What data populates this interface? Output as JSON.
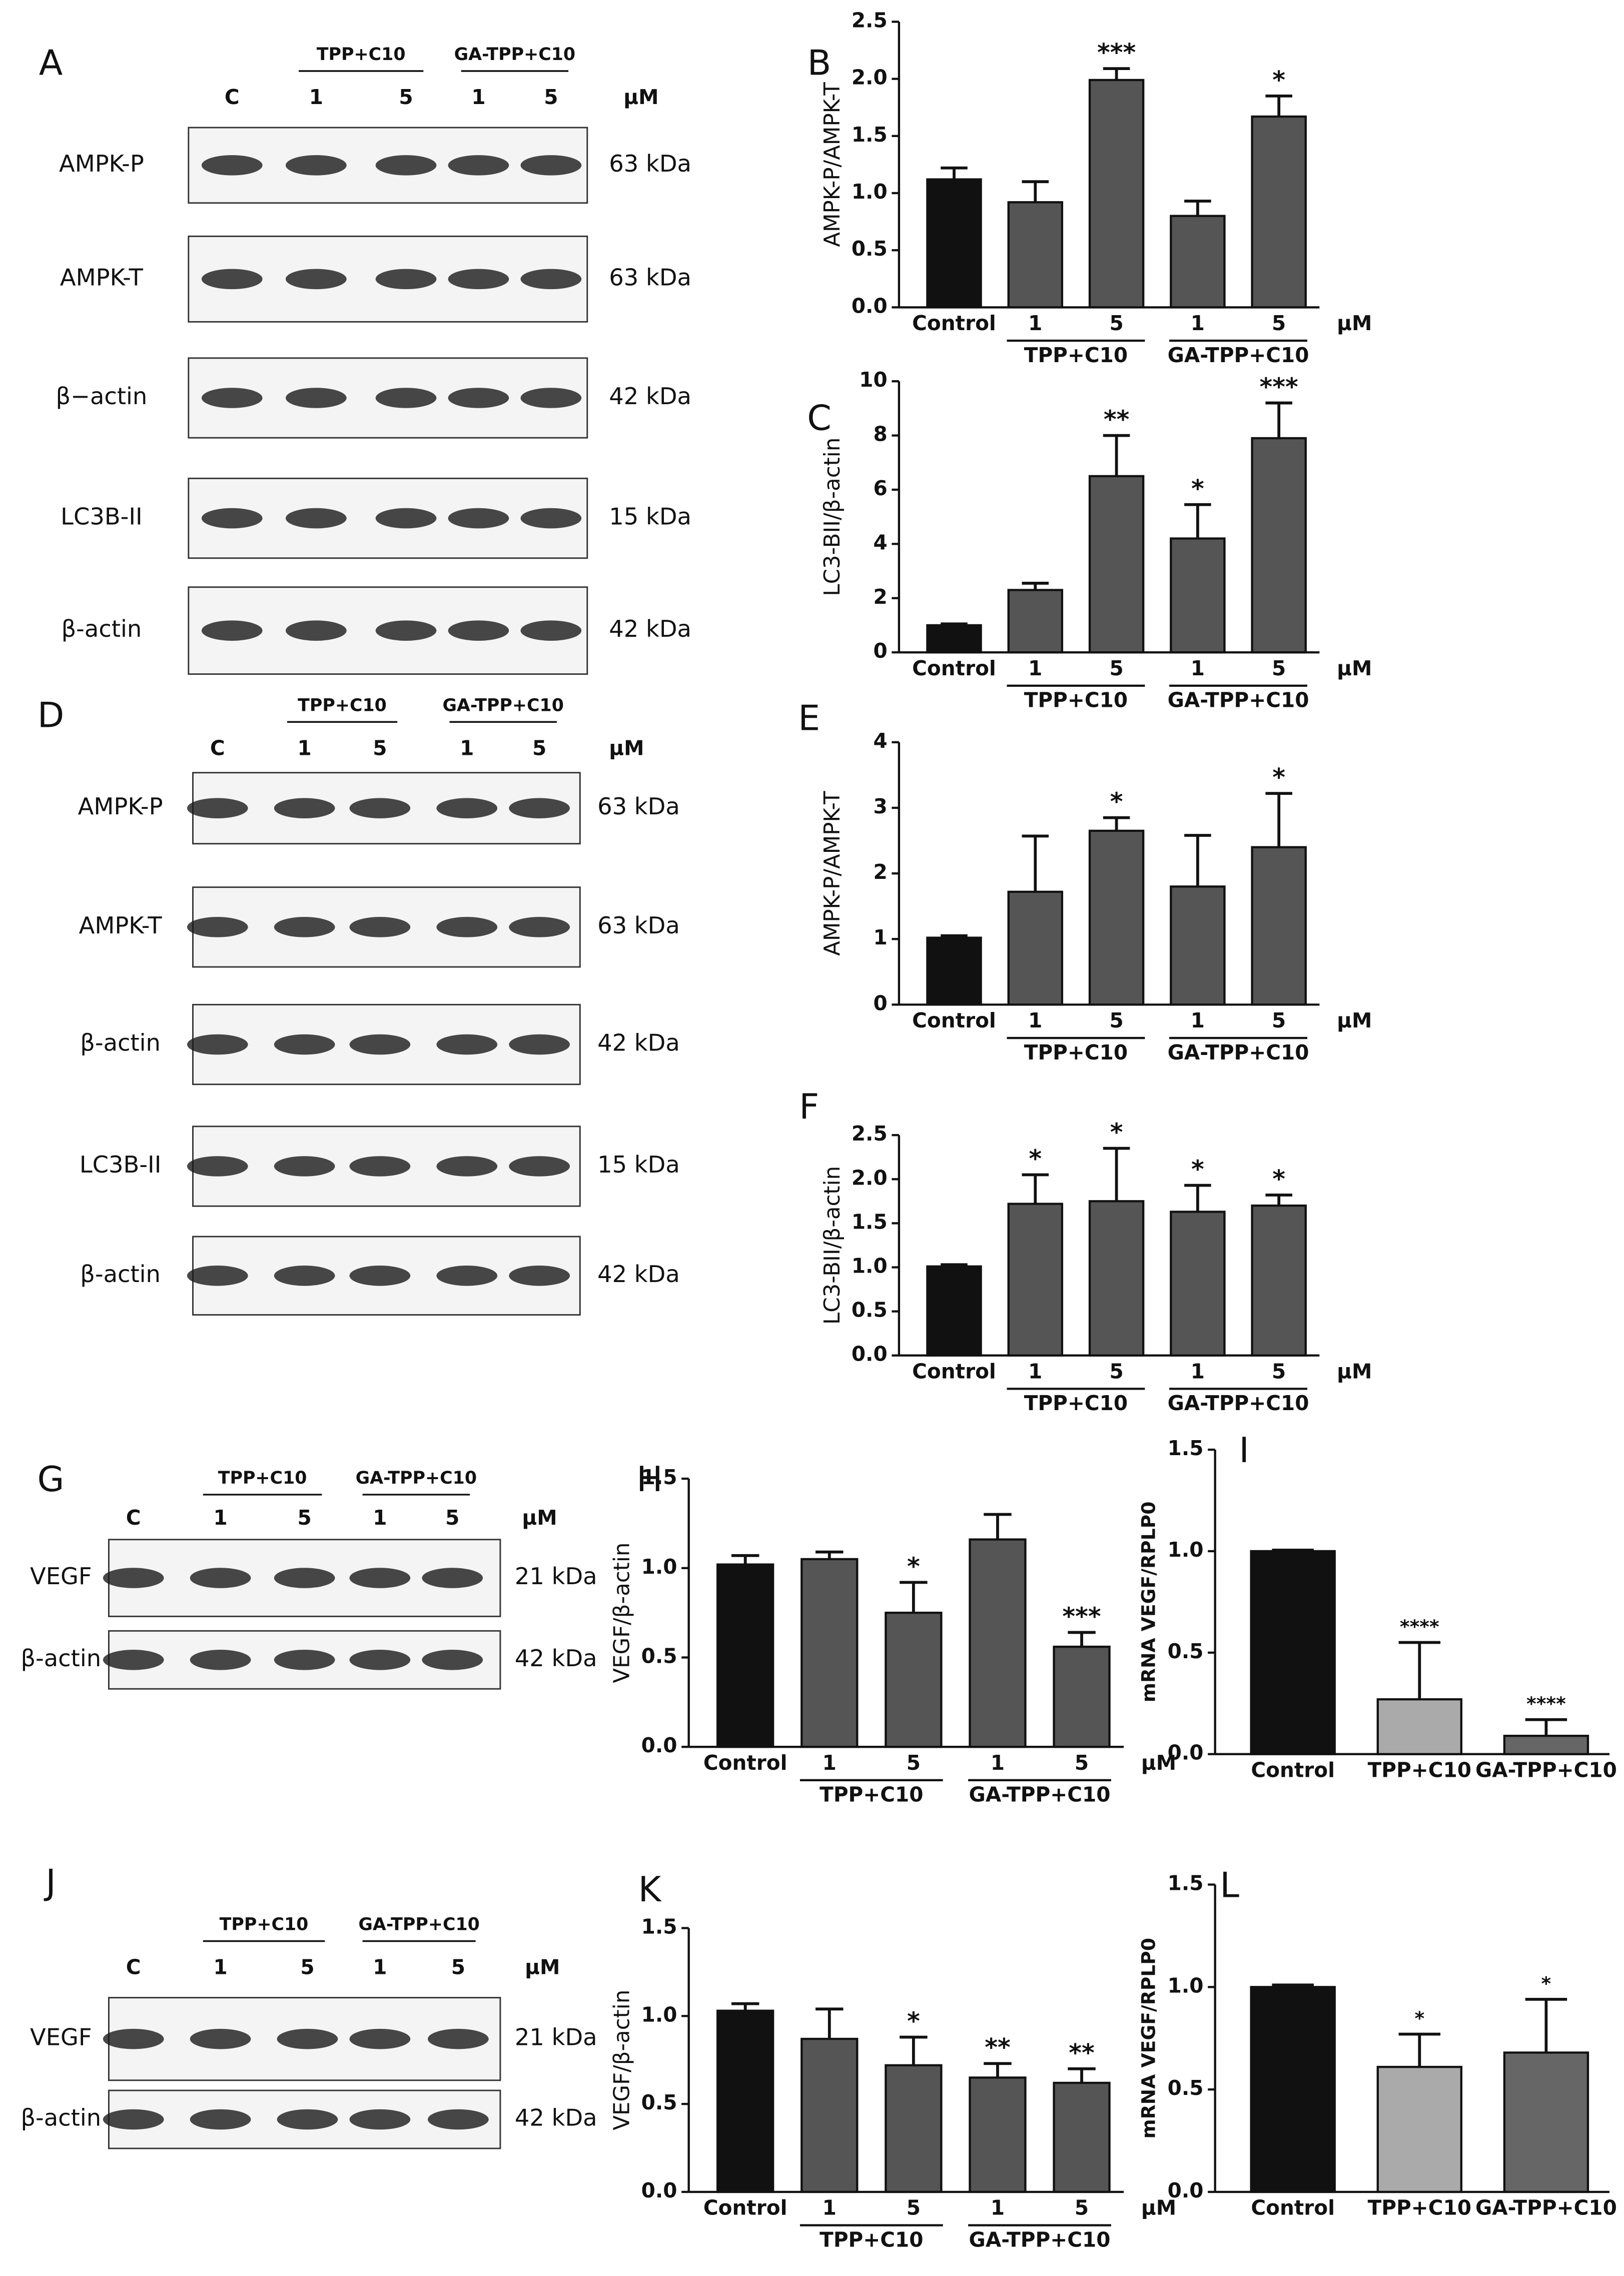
{
  "blots": [
    {
      "label": "A",
      "groups": [
        "TPP+C10",
        "GA-TPP+C10"
      ],
      "lanes": [
        "C",
        "1",
        "5",
        "1",
        "5"
      ],
      "unit": "µM",
      "rows": [
        {
          "protein": "AMPK-P",
          "size": "63 kDa"
        },
        {
          "protein": "AMPK-T",
          "size": "63 kDa"
        },
        {
          "protein": "β−actin",
          "size": "42 kDa"
        },
        {
          "protein": "LC3B-II",
          "size": "15 kDa"
        },
        {
          "protein": "β-actin",
          "size": "42 kDa"
        }
      ]
    },
    {
      "label": "D",
      "groups": [
        "TPP+C10",
        "GA-TPP+C10"
      ],
      "lanes": [
        "C",
        "1",
        "5",
        "1",
        "5"
      ],
      "unit": "µM",
      "rows": [
        {
          "protein": "AMPK-P",
          "size": "63 kDa"
        },
        {
          "protein": "AMPK-T",
          "size": "63 kDa"
        },
        {
          "protein": "β-actin",
          "size": "42 kDa"
        },
        {
          "protein": "LC3B-II",
          "size": "15 kDa"
        },
        {
          "protein": "β-actin",
          "size": "42 kDa"
        }
      ]
    },
    {
      "label": "G",
      "groups": [
        "TPP+C10",
        "GA-TPP+C10"
      ],
      "lanes": [
        "C",
        "1",
        "5",
        "1",
        "5"
      ],
      "unit": "µM",
      "rows": [
        {
          "protein": "VEGF",
          "size": "21 kDa"
        },
        {
          "protein": "β-actin",
          "size": "42 kDa"
        }
      ]
    },
    {
      "label": "J",
      "groups": [
        "TPP+C10",
        "GA-TPP+C10"
      ],
      "lanes": [
        "C",
        "1",
        "5",
        "1",
        "5"
      ],
      "unit": "µM",
      "rows": [
        {
          "protein": "VEGF",
          "size": "21 kDa"
        },
        {
          "protein": "β-actin",
          "size": "42 kDa"
        }
      ]
    }
  ],
  "chart_data": [
    {
      "type": "bar",
      "label": "B",
      "ylabel": "AMPK-P/AMPK-T",
      "categories": [
        "Control",
        "1",
        "5",
        "1",
        "5"
      ],
      "group_labels": [
        "TPP+C10",
        "GA-TPP+C10"
      ],
      "unit": "µM",
      "values": [
        1.12,
        0.92,
        1.99,
        0.8,
        1.67
      ],
      "errors": [
        0.1,
        0.18,
        0.1,
        0.13,
        0.18
      ],
      "annotations": [
        null,
        null,
        "***",
        null,
        "*"
      ],
      "colors": [
        "#111111",
        "#555555",
        "#555555",
        "#555555",
        "#555555"
      ],
      "ylim": [
        0,
        2.5
      ],
      "yticks": [
        {
          "value": 0,
          "label": "0.0"
        },
        {
          "value": 0.5,
          "label": "0.5"
        },
        {
          "value": 1,
          "label": "1.0"
        },
        {
          "value": 1.5,
          "label": "1.5"
        },
        {
          "value": 2,
          "label": "2.0"
        },
        {
          "value": 2.5,
          "label": "2.5"
        }
      ]
    },
    {
      "type": "bar",
      "label": "C",
      "ylabel": "LC3-BII/β-actin",
      "categories": [
        "Control",
        "1",
        "5",
        "1",
        "5"
      ],
      "group_labels": [
        "TPP+C10",
        "GA-TPP+C10"
      ],
      "unit": "µM",
      "values": [
        1,
        2.3,
        6.5,
        4.2,
        7.9
      ],
      "errors": [
        0.05,
        0.25,
        1.5,
        1.25,
        1.3
      ],
      "annotations": [
        null,
        null,
        "**",
        "*",
        "***"
      ],
      "colors": [
        "#111111",
        "#555555",
        "#555555",
        "#555555",
        "#555555"
      ],
      "ylim": [
        0,
        10
      ],
      "yticks": [
        0,
        2,
        4,
        6,
        8,
        10
      ]
    },
    {
      "type": "bar",
      "label": "E",
      "ylabel": "AMPK-P/AMPK-T",
      "categories": [
        "Control",
        "1",
        "5",
        "1",
        "5"
      ],
      "group_labels": [
        "TPP+C10",
        "GA-TPP+C10"
      ],
      "unit": "µM",
      "values": [
        1.02,
        1.72,
        2.65,
        1.8,
        2.4
      ],
      "errors": [
        0.03,
        0.85,
        0.2,
        0.78,
        0.82
      ],
      "annotations": [
        null,
        null,
        "*",
        null,
        "*"
      ],
      "colors": [
        "#111111",
        "#555555",
        "#555555",
        "#555555",
        "#555555"
      ],
      "ylim": [
        0,
        4
      ],
      "yticks": [
        0,
        1,
        2,
        3,
        4
      ]
    },
    {
      "type": "bar",
      "label": "F",
      "ylabel": "LC3-BII/β-actin",
      "categories": [
        "Control",
        "1",
        "5",
        "1",
        "5"
      ],
      "group_labels": [
        "TPP+C10",
        "GA-TPP+C10"
      ],
      "unit": "µM",
      "values": [
        1.01,
        1.72,
        1.75,
        1.63,
        1.7
      ],
      "errors": [
        0.02,
        0.33,
        0.6,
        0.3,
        0.12
      ],
      "annotations": [
        null,
        "*",
        "*",
        "*",
        "*"
      ],
      "colors": [
        "#111111",
        "#555555",
        "#555555",
        "#555555",
        "#555555"
      ],
      "ylim": [
        0,
        2.5
      ],
      "yticks": [
        {
          "value": 0,
          "label": "0.0"
        },
        {
          "value": 0.5,
          "label": "0.5"
        },
        {
          "value": 1,
          "label": "1.0"
        },
        {
          "value": 1.5,
          "label": "1.5"
        },
        {
          "value": 2,
          "label": "2.0"
        },
        {
          "value": 2.5,
          "label": "2.5"
        }
      ]
    },
    {
      "type": "bar",
      "label": "H",
      "ylabel": "VEGF/β-actin",
      "categories": [
        "Control",
        "1",
        "5",
        "1",
        "5"
      ],
      "group_labels": [
        "TPP+C10",
        "GA-TPP+C10"
      ],
      "unit": "µM",
      "values": [
        1.02,
        1.05,
        0.75,
        1.16,
        0.56
      ],
      "errors": [
        0.05,
        0.04,
        0.17,
        0.14,
        0.08
      ],
      "annotations": [
        null,
        null,
        "*",
        null,
        "***"
      ],
      "colors": [
        "#111111",
        "#555555",
        "#555555",
        "#555555",
        "#555555"
      ],
      "ylim": [
        0,
        1.5
      ],
      "yticks": [
        {
          "value": 0,
          "label": "0.0"
        },
        {
          "value": 0.5,
          "label": "0.5"
        },
        {
          "value": 1,
          "label": "1.0"
        },
        {
          "value": 1.5,
          "label": "1.5"
        }
      ]
    },
    {
      "type": "bar",
      "label": "I",
      "ylabel": "mRNA VEGF/RPLP0",
      "categories": [
        "Control",
        "TPP+C10",
        "GA-TPP+C10"
      ],
      "values": [
        1.0,
        0.27,
        0.09
      ],
      "errors": [
        0.005,
        0.28,
        0.08
      ],
      "annotations": [
        null,
        "****",
        "****"
      ],
      "colors": [
        "#111111",
        "#aaaaaa",
        "#666666"
      ],
      "ylim": [
        0,
        1.5
      ],
      "yticks": [
        {
          "value": 0,
          "label": "0.0"
        },
        {
          "value": 0.5,
          "label": "0.5"
        },
        {
          "value": 1,
          "label": "1.0"
        },
        {
          "value": 1.5,
          "label": "1.5"
        }
      ]
    },
    {
      "type": "bar",
      "label": "K",
      "ylabel": "VEGF/β-actin",
      "categories": [
        "Control",
        "1",
        "5",
        "1",
        "5"
      ],
      "group_labels": [
        "TPP+C10",
        "GA-TPP+C10"
      ],
      "unit": "µM",
      "values": [
        1.03,
        0.87,
        0.72,
        0.65,
        0.62
      ],
      "errors": [
        0.04,
        0.17,
        0.16,
        0.08,
        0.08
      ],
      "annotations": [
        null,
        null,
        "*",
        "**",
        "**"
      ],
      "colors": [
        "#111111",
        "#555555",
        "#555555",
        "#555555",
        "#555555"
      ],
      "ylim": [
        0,
        1.5
      ],
      "yticks": [
        {
          "value": 0,
          "label": "0.0"
        },
        {
          "value": 0.5,
          "label": "0.5"
        },
        {
          "value": 1,
          "label": "1.0"
        },
        {
          "value": 1.5,
          "label": "1.5"
        }
      ]
    },
    {
      "type": "bar",
      "label": "L",
      "ylabel": "mRNA VEGF/RPLP0",
      "categories": [
        "Control",
        "TPP+C10",
        "GA-TPP+C10"
      ],
      "values": [
        1.0,
        0.61,
        0.68
      ],
      "errors": [
        0.01,
        0.16,
        0.26
      ],
      "annotations": [
        null,
        "*",
        "*"
      ],
      "colors": [
        "#111111",
        "#aaaaaa",
        "#666666"
      ],
      "ylim": [
        0,
        1.5
      ],
      "yticks": [
        {
          "value": 0,
          "label": "0.0"
        },
        {
          "value": 0.5,
          "label": "0.5"
        },
        {
          "value": 1,
          "label": "1.0"
        },
        {
          "value": 1.5,
          "label": "1.5"
        }
      ]
    }
  ]
}
